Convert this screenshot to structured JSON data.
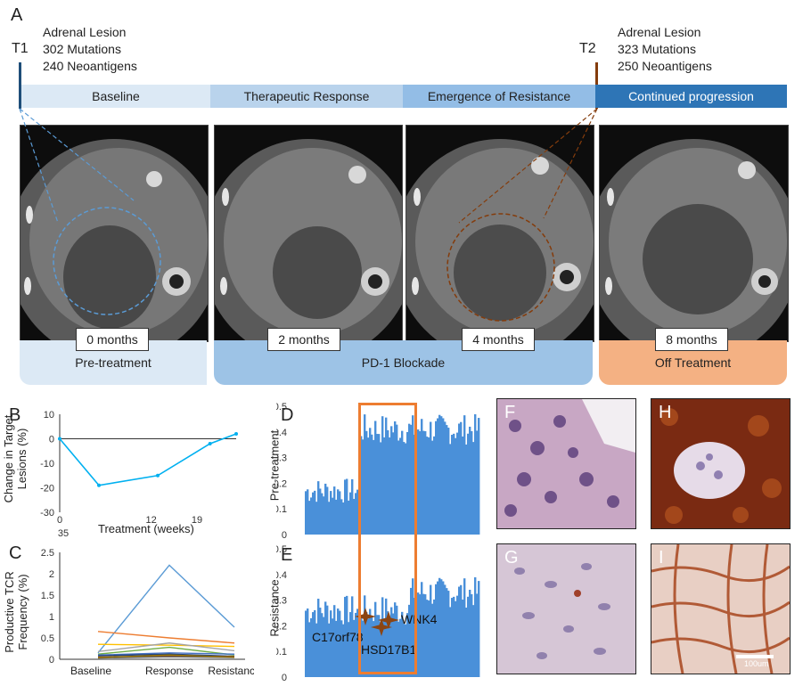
{
  "panel_labels": {
    "A": "A",
    "B": "B",
    "C": "C",
    "D": "D",
    "E": "E",
    "F": "F",
    "G": "G",
    "H": "H",
    "I": "I"
  },
  "t1": {
    "marker": "T1",
    "title": "Adrenal Lesion",
    "mutations": "302 Mutations",
    "neoantigens": "240 Neoantigens"
  },
  "t2": {
    "marker": "T2",
    "title": "Adrenal Lesion",
    "mutations": "323 Mutations",
    "neoantigens": "250 Neoantigens"
  },
  "phases": [
    "Baseline",
    "Therapeutic Response",
    "Emergence of Resistance",
    "Continued progression"
  ],
  "phase_colors": [
    "#dce9f5",
    "#b9d3ec",
    "#93bde6",
    "#2e75b6"
  ],
  "months": [
    "0 months",
    "2 months",
    "4 months",
    "8 months"
  ],
  "treatment": {
    "pre": "Pre-treatment",
    "pd1": "PD-1 Blockade",
    "off": "Off Treatment"
  },
  "treatment_colors": {
    "pre": "#dce9f5",
    "pd1": "#9dc3e6",
    "off": "#f4b183"
  },
  "scale_bar": "100um",
  "chart_data": [
    {
      "id": "B",
      "type": "line",
      "ylabel": "Change in Target Lesions (%)",
      "xlabel": "Treatment (weeks)",
      "y_ticks": [
        "10",
        "0",
        "-10",
        "-20",
        "-30"
      ],
      "x_ticks": [
        "0",
        "12",
        "19"
      ],
      "x_extra_tick": "35",
      "ylim": [
        -30,
        10
      ],
      "x": [
        0,
        6,
        15,
        23,
        27
      ],
      "y": [
        0,
        -19,
        -15,
        -2,
        2
      ],
      "color": "#00b0f0"
    },
    {
      "id": "C",
      "type": "line",
      "ylabel": "Productive TCR Frequency (%)",
      "categories": [
        "Baseline",
        "Response",
        "Resistance"
      ],
      "y_ticks": [
        "2.5",
        "2",
        "1.5",
        "1",
        "0.5",
        "0"
      ],
      "ylim": [
        0,
        2.5
      ],
      "series": [
        {
          "color": "#5b9bd5",
          "values": [
            0.15,
            2.2,
            0.75
          ]
        },
        {
          "color": "#ed7d31",
          "values": [
            0.65,
            0.5,
            0.38
          ]
        },
        {
          "color": "#ffc000",
          "values": [
            0.35,
            0.33,
            0.3
          ]
        },
        {
          "color": "#a5a5a5",
          "values": [
            0.18,
            0.38,
            0.2
          ]
        },
        {
          "color": "#70ad47",
          "values": [
            0.12,
            0.28,
            0.1
          ]
        },
        {
          "color": "#4472c4",
          "values": [
            0.1,
            0.15,
            0.12
          ]
        },
        {
          "color": "#264478",
          "values": [
            0.08,
            0.12,
            0.07
          ]
        },
        {
          "color": "#9e480e",
          "values": [
            0.05,
            0.08,
            0.06
          ]
        },
        {
          "color": "#636363",
          "values": [
            0.03,
            0.06,
            0.04
          ]
        },
        {
          "color": "#997300",
          "values": [
            0.04,
            0.1,
            0.05
          ]
        }
      ]
    },
    {
      "id": "D",
      "type": "bar",
      "ylabel": "Pre-treatment",
      "y_ticks": [
        "0.5",
        "0.4",
        "0.3",
        "0.2",
        "0.1",
        "0"
      ],
      "ylim": [
        0,
        0.5
      ],
      "segments": [
        {
          "from": 0,
          "to": 0.3,
          "mean": 0.17,
          "spread": 0.05
        },
        {
          "from": 0.3,
          "to": 1,
          "mean": 0.41,
          "spread": 0.06
        }
      ],
      "color": "#4a90d9"
    },
    {
      "id": "E",
      "type": "bar",
      "ylabel": "Resistance",
      "y_ticks": [
        "0.5",
        "0.4",
        "0.3",
        "0.2",
        "0.1",
        "0"
      ],
      "ylim": [
        0,
        0.5
      ],
      "segments": [
        {
          "from": 0,
          "to": 0.6,
          "mean": 0.26,
          "spread": 0.06
        },
        {
          "from": 0.6,
          "to": 1,
          "mean": 0.33,
          "spread": 0.06
        }
      ],
      "color": "#4a90d9",
      "genes": [
        "C17orf78",
        "WNK4",
        "HSD17B1"
      ]
    }
  ]
}
